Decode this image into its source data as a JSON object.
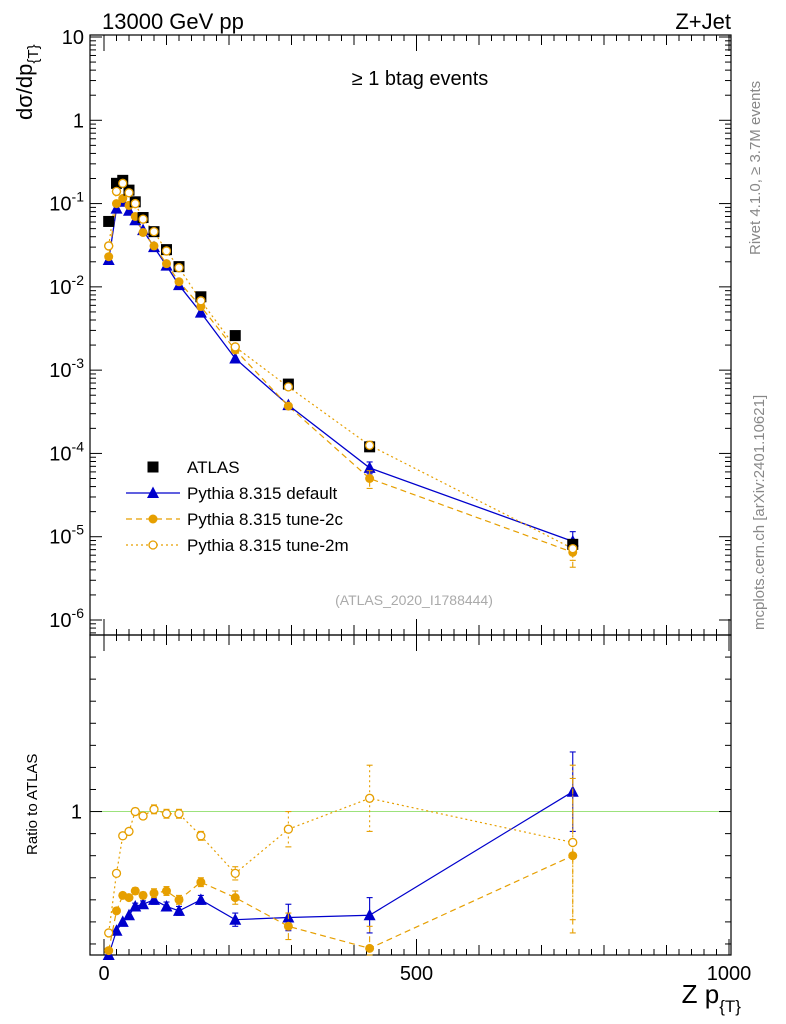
{
  "header": {
    "left": "13000 GeV pp",
    "right": "Z+Jet"
  },
  "side_labels": {
    "rivet": "Rivet 4.1.0, ≥ 3.7M events",
    "mcplots": "mcplots.cern.ch [arXiv:2401.10621]"
  },
  "chart_data": [
    {
      "type": "scatter",
      "panel": "main",
      "title": "≥ 1 btag events",
      "watermark": "(ATLAS_2020_I1788444)",
      "ylabel_main": "dσ/dp",
      "ylabel_sub": "{T}",
      "yscale": "log",
      "ylim": [
        5e-07,
        10
      ],
      "xlim": [
        -20,
        1000
      ],
      "y_tick_labels": [
        {
          "base": "10",
          "exp": "-6",
          "value": 1e-06
        },
        {
          "base": "10",
          "exp": "-5",
          "value": 1e-05
        },
        {
          "base": "10",
          "exp": "-4",
          "value": 0.0001
        },
        {
          "base": "10",
          "exp": "-3",
          "value": 0.001
        },
        {
          "base": "10",
          "exp": "-2",
          "value": 0.01
        },
        {
          "base": "10",
          "exp": "-1",
          "value": 0.1
        },
        {
          "base": "1",
          "exp": "",
          "value": 1
        },
        {
          "base": "10",
          "exp": "",
          "value": 10
        }
      ],
      "x": [
        7.5,
        20,
        30,
        40,
        50,
        62.5,
        80,
        100,
        120,
        155,
        210,
        295,
        425,
        750
      ],
      "series": [
        {
          "name": "ATLAS",
          "style": "data",
          "color": "#000000",
          "values": [
            0.061,
            0.175,
            0.19,
            0.145,
            0.105,
            0.068,
            0.046,
            0.028,
            0.0175,
            0.0076,
            0.0026,
            0.00068,
            0.00012,
            8.1e-06
          ],
          "err_lo": [
            0,
            0,
            0,
            0,
            0,
            0,
            0,
            0,
            0,
            0,
            0,
            0,
            0,
            0
          ],
          "err_hi": [
            0,
            0,
            0,
            0,
            0,
            0,
            0,
            0,
            0,
            0,
            0,
            0,
            0,
            0
          ]
        },
        {
          "name": "Pythia 8.315 default",
          "style": "solid-triangle",
          "color": "#0000cc",
          "values": [
            0.021,
            0.087,
            0.105,
            0.082,
            0.063,
            0.048,
            0.03,
            0.018,
            0.0105,
            0.0049,
            0.00138,
            0.00038,
            6.7e-05,
            8.8e-06
          ],
          "err_lo": [
            0,
            0,
            0,
            0,
            0,
            0,
            0,
            0,
            0,
            0,
            0,
            0,
            1e-05,
            2e-06
          ],
          "err_hi": [
            0,
            0,
            0,
            0,
            0,
            0,
            0,
            0,
            0,
            0,
            0,
            0,
            1.2e-05,
            2.7e-06
          ]
        },
        {
          "name": "Pythia 8.315 tune-2c",
          "style": "dashed-circle",
          "color": "#e69f00",
          "values": [
            0.023,
            0.1,
            0.115,
            0.095,
            0.07,
            0.045,
            0.031,
            0.019,
            0.0115,
            0.0058,
            0.00175,
            0.00037,
            5e-05,
            6.5e-06
          ],
          "err_lo": [
            0,
            0,
            0,
            0,
            0,
            0,
            0,
            0,
            0,
            0,
            0,
            0,
            1.2e-05,
            2.2e-06
          ],
          "err_hi": [
            0,
            0,
            0,
            0,
            0,
            0,
            0,
            0,
            0,
            0,
            0,
            0,
            1.2e-05,
            2.2e-06
          ]
        },
        {
          "name": "Pythia 8.315 tune-2m",
          "style": "dotted-open-circle",
          "color": "#e69f00",
          "values": [
            0.031,
            0.14,
            0.175,
            0.135,
            0.1,
            0.065,
            0.046,
            0.027,
            0.017,
            0.0068,
            0.0019,
            0.00063,
            0.000125,
            7.2e-06
          ],
          "err_lo": [
            0,
            0,
            0,
            0,
            0,
            0,
            0,
            0,
            0,
            0,
            0,
            0,
            1.5e-05,
            2e-06
          ],
          "err_hi": [
            0,
            0,
            0,
            0,
            0,
            0,
            0,
            0,
            0,
            0,
            0,
            0,
            1.5e-05,
            2e-06
          ]
        }
      ],
      "legend": [
        "ATLAS",
        "Pythia 8.315 default",
        "Pythia 8.315 tune-2c",
        "Pythia 8.315 tune-2m"
      ],
      "legend_position": "bottom-left"
    },
    {
      "type": "scatter",
      "panel": "ratio",
      "ylabel": "Ratio to ATLAS",
      "xlabel_main": "Z p",
      "xlabel_sub": "{T}",
      "xlim": [
        -20,
        1000
      ],
      "ylim": [
        0.35,
        1.8
      ],
      "x_ticks": [
        0,
        500,
        1000
      ],
      "x_tick_labels": [
        "0",
        "500",
        "1000"
      ],
      "y_tick_labels": [
        "1"
      ],
      "reference_line": 1,
      "x": [
        7.5,
        20,
        30,
        40,
        50,
        62.5,
        80,
        100,
        120,
        155,
        210,
        295,
        425,
        750
      ],
      "series": [
        {
          "name": "Pythia 8.315 default",
          "values": [
            0.35,
            0.46,
            0.5,
            0.53,
            0.57,
            0.58,
            0.6,
            0.57,
            0.55,
            0.6,
            0.51,
            0.52,
            0.53,
            1.09
          ],
          "err_lo": [
            0,
            0,
            0,
            0,
            0.015,
            0.015,
            0.02,
            0.02,
            0.02,
            0.02,
            0.03,
            0.06,
            0.08,
            0.18
          ],
          "err_hi": [
            0,
            0,
            0,
            0,
            0.015,
            0.015,
            0.02,
            0.02,
            0.02,
            0.02,
            0.03,
            0.06,
            0.08,
            0.18
          ]
        },
        {
          "name": "Pythia 8.315 tune-2c",
          "values": [
            0.37,
            0.55,
            0.62,
            0.61,
            0.64,
            0.62,
            0.63,
            0.64,
            0.6,
            0.68,
            0.61,
            0.48,
            0.38,
            0.8
          ],
          "err_lo": [
            0,
            0,
            0,
            0,
            0.015,
            0.015,
            0.02,
            0.02,
            0.02,
            0.02,
            0.03,
            0.06,
            0.1,
            0.35
          ],
          "err_hi": [
            0,
            0,
            0,
            0,
            0.015,
            0.015,
            0.02,
            0.02,
            0.02,
            0.02,
            0.03,
            0.06,
            0.1,
            0.35
          ]
        },
        {
          "name": "Pythia 8.315 tune-2m",
          "values": [
            0.45,
            0.72,
            0.89,
            0.91,
            1.0,
            0.98,
            1.01,
            0.99,
            0.99,
            0.89,
            0.72,
            0.92,
            1.06,
            0.86
          ],
          "err_lo": [
            0,
            0,
            0,
            0,
            0.015,
            0.015,
            0.02,
            0.02,
            0.02,
            0.02,
            0.03,
            0.08,
            0.15,
            0.35
          ],
          "err_hi": [
            0,
            0,
            0,
            0,
            0.015,
            0.015,
            0.02,
            0.02,
            0.02,
            0.02,
            0.03,
            0.08,
            0.15,
            0.35
          ]
        }
      ]
    }
  ]
}
